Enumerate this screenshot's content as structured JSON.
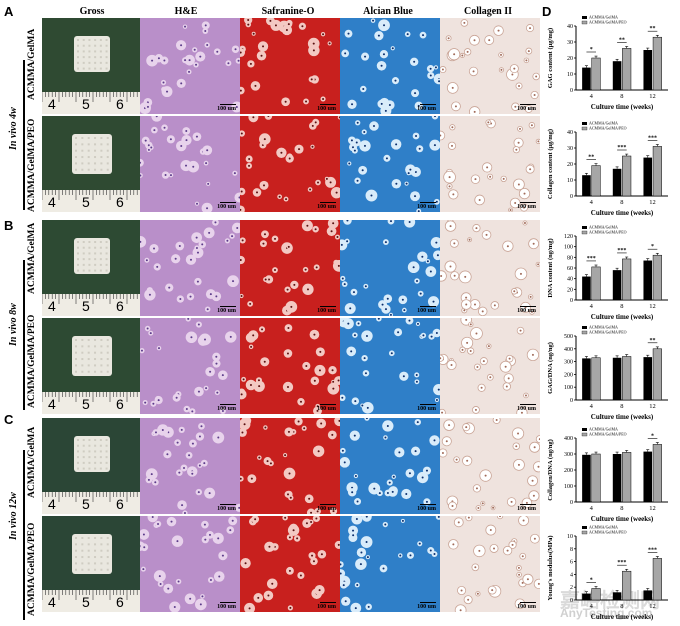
{
  "panels": {
    "A": "A",
    "B": "B",
    "C": "C",
    "D": "D"
  },
  "columns": [
    "Gross",
    "H&E",
    "Safranine-O",
    "Alcian Blue",
    "Collagen II"
  ],
  "groups": [
    {
      "time": "In vivo 4w",
      "rows": [
        "ACMMA/GelMA",
        "ACMMA/GelMA/PEO"
      ]
    },
    {
      "time": "In vivo 8w",
      "rows": [
        "ACMMA/GelMA",
        "ACMMA/GelMA/PEO"
      ]
    },
    {
      "time": "In vivo 12w",
      "rows": [
        "ACMMA/GelMA",
        "ACMMA/GelMA/PEO"
      ]
    }
  ],
  "ruler_numbers": [
    "4",
    "5",
    "6"
  ],
  "scale_label": "100 um",
  "scale_label_alt": "200 um",
  "watermark": {
    "cn": "嘉峪检测网",
    "en": "AnyTesting.com"
  },
  "colors": {
    "black_bar": "#000000",
    "gray_bar": "#a6a6a6",
    "he": "#b98fc9",
    "safo": "#c8201e",
    "alcian": "#2f7fc8",
    "col2": "#efe3de"
  },
  "chart_data": [
    {
      "type": "bar",
      "ylabel": "GAG content (μg/mg)",
      "xlabel": "Culture time (weeks)",
      "categories": [
        "4",
        "8",
        "12"
      ],
      "ylim": [
        0,
        40
      ],
      "yticks": [
        "0",
        "10",
        "20",
        "30",
        "40"
      ],
      "series": [
        {
          "name": "ACMMA/GelMA",
          "values": [
            14,
            18,
            25
          ]
        },
        {
          "name": "ACMMA/GelMA/PEO",
          "values": [
            20,
            26,
            33
          ]
        }
      ],
      "significance": [
        "*",
        "**",
        "**"
      ]
    },
    {
      "type": "bar",
      "ylabel": "Collagen content (μg/mg)",
      "xlabel": "Culture time (weeks)",
      "categories": [
        "4",
        "8",
        "12"
      ],
      "ylim": [
        0,
        40
      ],
      "yticks": [
        "0",
        "10",
        "20",
        "30",
        "40"
      ],
      "series": [
        {
          "name": "ACMMA/GelMA",
          "values": [
            13,
            17,
            24
          ]
        },
        {
          "name": "ACMMA/GelMA/PEO",
          "values": [
            19,
            25,
            31
          ]
        }
      ],
      "significance": [
        "**",
        "***",
        "***"
      ]
    },
    {
      "type": "bar",
      "ylabel": "DNA content (ng/mg)",
      "xlabel": "Culture time (weeks)",
      "categories": [
        "4",
        "8",
        "12"
      ],
      "ylim": [
        0,
        120
      ],
      "yticks": [
        "0",
        "20",
        "40",
        "60",
        "80",
        "100",
        "120"
      ],
      "series": [
        {
          "name": "ACMMA/GelMA",
          "values": [
            44,
            56,
            74
          ]
        },
        {
          "name": "ACMMA/GelMA/PEO",
          "values": [
            62,
            77,
            84
          ]
        }
      ],
      "significance": [
        "***",
        "***",
        "*"
      ]
    },
    {
      "type": "bar",
      "ylabel": "GAG/DNA (ng/ng)",
      "xlabel": "Culture time (weeks)",
      "categories": [
        "4",
        "8",
        "12"
      ],
      "ylim": [
        0,
        500
      ],
      "yticks": [
        "0",
        "100",
        "200",
        "300",
        "400",
        "500"
      ],
      "series": [
        {
          "name": "ACMMA/GelMA",
          "values": [
            325,
            330,
            335
          ]
        },
        {
          "name": "ACMMA/GelMA/PEO",
          "values": [
            330,
            340,
            400
          ]
        }
      ],
      "significance": [
        "",
        "",
        "**"
      ]
    },
    {
      "type": "bar",
      "ylabel": "Collagen/DNA (ng/ng)",
      "xlabel": "Culture time (weeks)",
      "categories": [
        "4",
        "8",
        "12"
      ],
      "ylim": [
        0,
        400
      ],
      "yticks": [
        "0",
        "100",
        "200",
        "300",
        "400"
      ],
      "series": [
        {
          "name": "ACMMA/GelMA",
          "values": [
            295,
            300,
            315
          ]
        },
        {
          "name": "ACMMA/GelMA/PEO",
          "values": [
            300,
            310,
            360
          ]
        }
      ],
      "significance": [
        "",
        "",
        "*"
      ]
    },
    {
      "type": "bar",
      "ylabel": "Young's modulus(MPa)",
      "xlabel": "Culture time (weeks)",
      "categories": [
        "4",
        "8",
        "12"
      ],
      "ylim": [
        0,
        10
      ],
      "yticks": [
        "0",
        "2",
        "4",
        "6",
        "8",
        "10"
      ],
      "series": [
        {
          "name": "ACMMA/GelMA",
          "values": [
            1.0,
            1.2,
            1.5
          ]
        },
        {
          "name": "ACMMA/GelMA/PEO",
          "values": [
            1.8,
            4.5,
            6.5
          ]
        }
      ],
      "significance": [
        "*",
        "***",
        "***"
      ]
    }
  ]
}
